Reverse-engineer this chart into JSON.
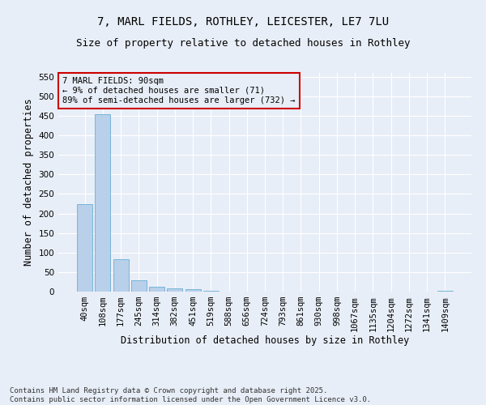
{
  "title_line1": "7, MARL FIELDS, ROTHLEY, LEICESTER, LE7 7LU",
  "title_line2": "Size of property relative to detached houses in Rothley",
  "xlabel": "Distribution of detached houses by size in Rothley",
  "ylabel": "Number of detached properties",
  "categories": [
    "40sqm",
    "108sqm",
    "177sqm",
    "245sqm",
    "314sqm",
    "382sqm",
    "451sqm",
    "519sqm",
    "588sqm",
    "656sqm",
    "724sqm",
    "793sqm",
    "861sqm",
    "930sqm",
    "998sqm",
    "1067sqm",
    "1135sqm",
    "1204sqm",
    "1272sqm",
    "1341sqm",
    "1409sqm"
  ],
  "values": [
    225,
    455,
    82,
    30,
    12,
    8,
    6,
    2,
    0,
    0,
    0,
    0,
    1,
    0,
    0,
    1,
    0,
    0,
    0,
    0,
    2
  ],
  "bar_color": "#b8d0ea",
  "bar_edge_color": "#6aaed6",
  "ylim": [
    0,
    560
  ],
  "yticks": [
    0,
    50,
    100,
    150,
    200,
    250,
    300,
    350,
    400,
    450,
    500,
    550
  ],
  "annotation_box_text": "7 MARL FIELDS: 90sqm\n← 9% of detached houses are smaller (71)\n89% of semi-detached houses are larger (732) →",
  "annotation_color": "#cc0000",
  "bg_color": "#e8eef7",
  "grid_color": "#ffffff",
  "footer_text": "Contains HM Land Registry data © Crown copyright and database right 2025.\nContains public sector information licensed under the Open Government Licence v3.0.",
  "title_fontsize": 10,
  "subtitle_fontsize": 9,
  "axis_label_fontsize": 8.5,
  "tick_fontsize": 7.5,
  "annotation_fontsize": 7.5,
  "footer_fontsize": 6.5
}
